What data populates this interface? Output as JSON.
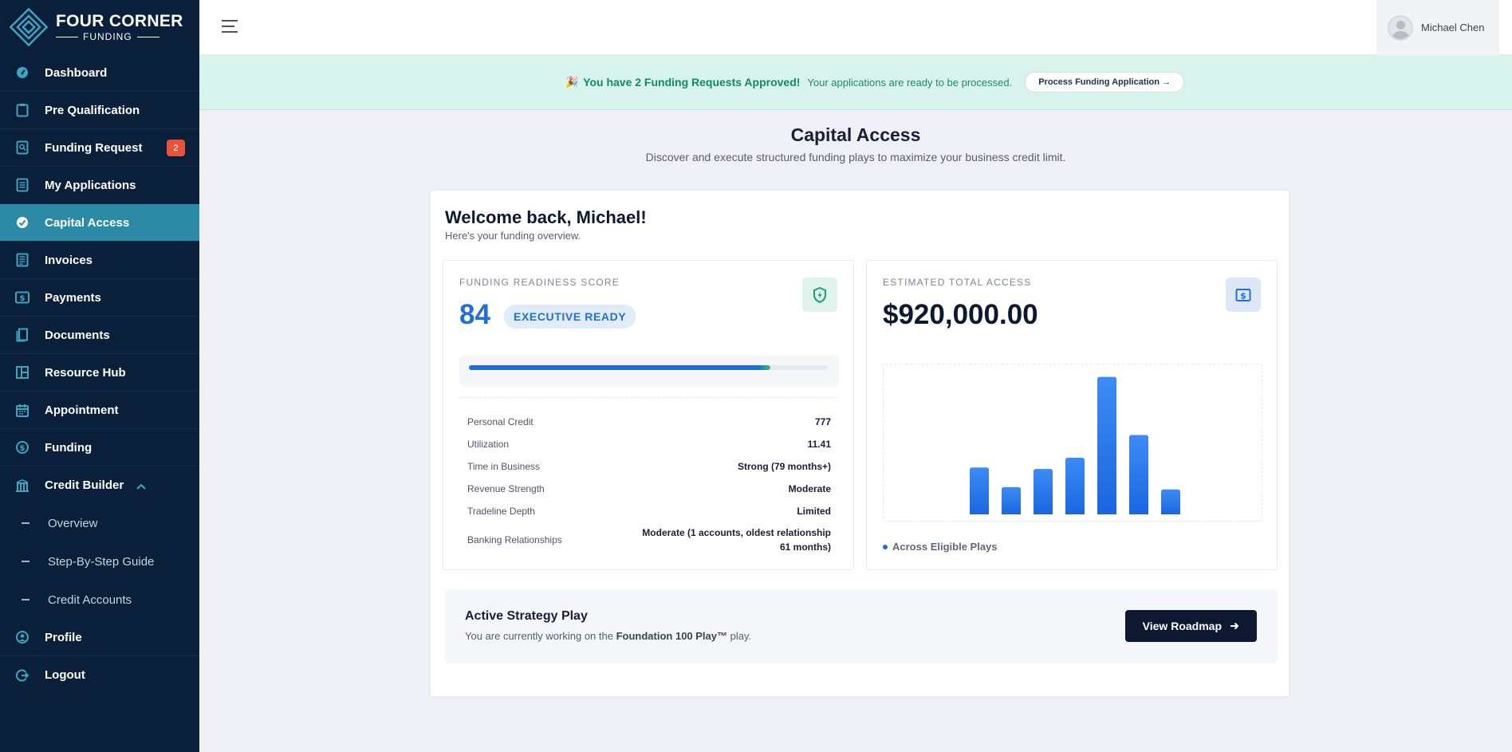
{
  "brand": {
    "line1": "FOUR CORNER",
    "line2": "FUNDING"
  },
  "sidebar": {
    "items": [
      {
        "label": "Dashboard",
        "icon": "gauge-icon"
      },
      {
        "label": "Pre Qualification",
        "icon": "clipboard-icon"
      },
      {
        "label": "Funding Request",
        "icon": "search-document-icon",
        "badge": "2"
      },
      {
        "label": "My Applications",
        "icon": "list-document-icon"
      },
      {
        "label": "Capital Access",
        "icon": "check-circle-icon",
        "active": true
      },
      {
        "label": "Invoices",
        "icon": "invoice-icon"
      },
      {
        "label": "Payments",
        "icon": "dollar-bill-icon"
      },
      {
        "label": "Documents",
        "icon": "documents-icon"
      },
      {
        "label": "Resource Hub",
        "icon": "layout-icon"
      },
      {
        "label": "Appointment",
        "icon": "calendar-icon"
      },
      {
        "label": "Funding",
        "icon": "dollar-circle-icon"
      },
      {
        "label": "Credit Builder",
        "icon": "bank-icon",
        "expanded": true
      }
    ],
    "subitems": [
      {
        "label": "Overview"
      },
      {
        "label": "Step-By-Step Guide"
      },
      {
        "label": "Credit Accounts"
      }
    ],
    "bottom": [
      {
        "label": "Profile",
        "icon": "user-circle-icon"
      },
      {
        "label": "Logout",
        "icon": "logout-icon"
      }
    ]
  },
  "header": {
    "user_name": "Michael Chen"
  },
  "banner": {
    "emoji": "🎉",
    "strong": "You have 2 Funding Requests Approved!",
    "message": "Your applications are ready to be processed.",
    "button": "Process Funding Application →"
  },
  "page": {
    "title": "Capital Access",
    "subtitle": "Discover and execute structured funding plays to maximize your business credit limit."
  },
  "welcome": {
    "title": "Welcome back, Michael!",
    "subtitle": "Here's your funding overview."
  },
  "readiness": {
    "label": "FUNDING READINESS SCORE",
    "score": "84",
    "badge": "EXECUTIVE READY",
    "progress_percent": 84,
    "metrics": [
      {
        "k": "Personal Credit",
        "v": "777"
      },
      {
        "k": "Utilization",
        "v": "11.41"
      },
      {
        "k": "Time in Business",
        "v": "Strong (79 months+)"
      },
      {
        "k": "Revenue Strength",
        "v": "Moderate"
      },
      {
        "k": "Tradeline Depth",
        "v": "Limited"
      },
      {
        "k": "Banking Relationships",
        "v": "Moderate (1 accounts, oldest relationship 61 months)"
      }
    ]
  },
  "access": {
    "label": "ESTIMATED TOTAL ACCESS",
    "amount": "$920,000.00",
    "legend": "Across Eligible Plays"
  },
  "chart_data": {
    "type": "bar",
    "categories": [
      "1",
      "2",
      "3",
      "4",
      "5",
      "6",
      "7"
    ],
    "values": [
      62,
      36,
      60,
      75,
      182,
      105,
      33
    ],
    "ylim": [
      0,
      190
    ],
    "grid": false,
    "color": "#2b7bf0"
  },
  "strategy": {
    "title": "Active Strategy Play",
    "prefix": "You are currently working on the",
    "play": "Foundation 100 Play™",
    "suffix": "play.",
    "button": "View Roadmap"
  },
  "colors": {
    "sidebar_bg": "#0a1f3a",
    "active_bg": "#2c8aa6",
    "accent": "#1f6fd9",
    "banner_bg": "#d7f3ec"
  }
}
